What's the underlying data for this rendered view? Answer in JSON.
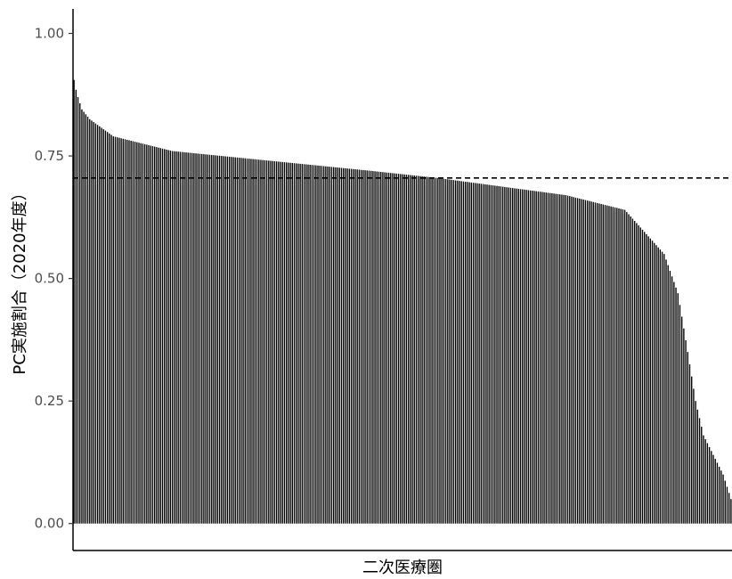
{
  "chart_data": {
    "type": "bar",
    "title": "",
    "xlabel": "二次医療圏",
    "ylabel": "PC実施割合（2020年度）",
    "ylim": [
      -0.055,
      1.05
    ],
    "yticks": [
      "0.00",
      "0.25",
      "0.50",
      "0.75",
      "1.00"
    ],
    "ytick_values": [
      0,
      0.25,
      0.5,
      0.75,
      1.0
    ],
    "grid": false,
    "legend": "none",
    "bar_count": 335,
    "sorted": "descending",
    "reference_line": {
      "value": 0.705,
      "style": "dashed"
    },
    "profile_x": [
      0,
      1,
      2,
      4,
      8,
      20,
      50,
      100,
      150,
      185,
      250,
      280,
      300,
      307,
      312,
      316,
      320,
      325,
      330,
      334
    ],
    "profile_y": [
      0.905,
      0.885,
      0.87,
      0.845,
      0.825,
      0.79,
      0.76,
      0.74,
      0.72,
      0.705,
      0.67,
      0.64,
      0.55,
      0.47,
      0.35,
      0.25,
      0.18,
      0.14,
      0.1,
      0.05
    ],
    "colors": {
      "bar": "#000000",
      "axis": "#000000",
      "line": "#000000"
    }
  }
}
